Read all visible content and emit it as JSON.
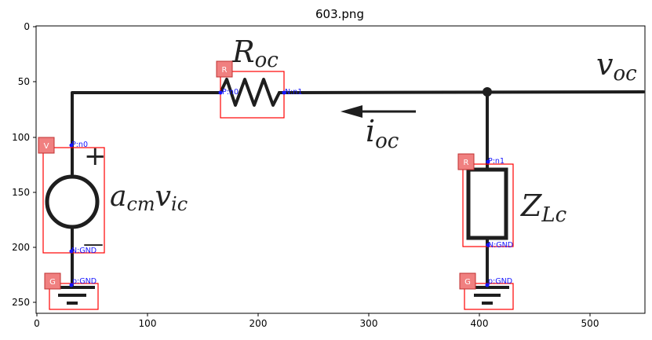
{
  "title": "603.png",
  "axes": {
    "x_ticks": [
      "0",
      "100",
      "200",
      "300",
      "400",
      "500"
    ],
    "y_ticks": [
      "0",
      "50",
      "100",
      "150",
      "200",
      "250"
    ]
  },
  "circuit_labels": {
    "resistor_top_main": "R",
    "resistor_top_sub": "oc",
    "voltage_out_main": "v",
    "voltage_out_sub": "oc",
    "current_main": "i",
    "current_sub": "oc",
    "source_main": "a",
    "source_sub1": "cm",
    "source_mid": "v",
    "source_sub2": "ic",
    "load_main": "Z",
    "load_sub": "Lc",
    "plus": "+",
    "minus": "—"
  },
  "annotations": [
    {
      "tag": "R",
      "pins": [
        "P:n0",
        "N:n1"
      ]
    },
    {
      "tag": "V",
      "pins": [
        "P:n0",
        "N:GND"
      ]
    },
    {
      "tag": "R",
      "pins": [
        "P:n1",
        "N:GND"
      ]
    },
    {
      "tag": "G",
      "pins": [
        "p:GND"
      ]
    },
    {
      "tag": "G",
      "pins": [
        "p:GND"
      ]
    }
  ],
  "colors": {
    "wire": "#1e1e1e",
    "box": "#ff0000",
    "tag_fill": "#f08080",
    "pin": "#1414ff"
  }
}
